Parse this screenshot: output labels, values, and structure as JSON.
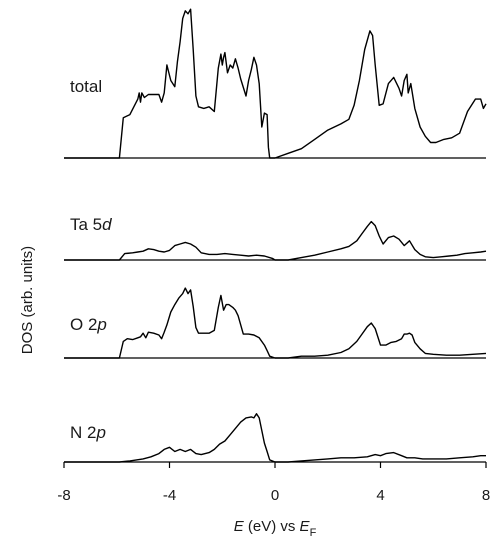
{
  "chart_data": {
    "type": "line",
    "ylabel": "DOS (arb. units)",
    "xlabel": {
      "italic_var": "E",
      "mid": " (eV) vs ",
      "italic_sub_base": "E",
      "sub": "F"
    },
    "xlim": [
      -8,
      8
    ],
    "xticks": [
      -8,
      -4,
      0,
      4,
      8
    ],
    "x_tick_labels": [
      "-8",
      "-4",
      "0",
      "4",
      "8"
    ],
    "grid": false,
    "panels": [
      {
        "label": "total",
        "label_main": "total",
        "label_sym": "",
        "ymax": 1.0,
        "x": [
          -8,
          -5.9,
          -5.75,
          -5.5,
          -5.2,
          -5.15,
          -5.1,
          -5.05,
          -4.95,
          -4.8,
          -4.6,
          -4.4,
          -4.3,
          -4.2,
          -4.1,
          -3.95,
          -3.8,
          -3.7,
          -3.6,
          -3.5,
          -3.4,
          -3.3,
          -3.2,
          -3.1,
          -3.0,
          -2.9,
          -2.7,
          -2.5,
          -2.3,
          -2.15,
          -2.05,
          -2.0,
          -1.95,
          -1.9,
          -1.8,
          -1.7,
          -1.6,
          -1.5,
          -1.4,
          -1.3,
          -1.1,
          -1.0,
          -0.9,
          -0.8,
          -0.7,
          -0.6,
          -0.5,
          -0.4,
          -0.3,
          -0.25,
          -0.2,
          0.0,
          0.5,
          1.0,
          1.5,
          2.0,
          2.5,
          2.8,
          3.0,
          3.2,
          3.4,
          3.6,
          3.7,
          3.8,
          3.95,
          4.1,
          4.3,
          4.5,
          4.7,
          4.8,
          4.9,
          5.0,
          5.05,
          5.15,
          5.3,
          5.5,
          5.7,
          5.9,
          6.1,
          6.4,
          6.7,
          7.0,
          7.3,
          7.6,
          7.8,
          7.9,
          8.0
        ],
        "y": [
          0,
          0,
          0.26,
          0.28,
          0.38,
          0.42,
          0.36,
          0.42,
          0.39,
          0.41,
          0.41,
          0.41,
          0.36,
          0.42,
          0.6,
          0.5,
          0.46,
          0.62,
          0.75,
          0.9,
          0.95,
          0.93,
          0.96,
          0.7,
          0.4,
          0.33,
          0.32,
          0.33,
          0.3,
          0.58,
          0.67,
          0.6,
          0.65,
          0.68,
          0.55,
          0.6,
          0.58,
          0.64,
          0.58,
          0.51,
          0.4,
          0.5,
          0.57,
          0.65,
          0.6,
          0.48,
          0.2,
          0.29,
          0.28,
          0.07,
          0.0,
          0.0,
          0.03,
          0.06,
          0.12,
          0.18,
          0.22,
          0.25,
          0.34,
          0.5,
          0.7,
          0.82,
          0.79,
          0.6,
          0.34,
          0.35,
          0.48,
          0.52,
          0.45,
          0.4,
          0.5,
          0.54,
          0.42,
          0.48,
          0.32,
          0.2,
          0.14,
          0.1,
          0.1,
          0.12,
          0.13,
          0.16,
          0.3,
          0.38,
          0.38,
          0.32,
          0.35
        ]
      },
      {
        "label": "Ta 5d",
        "label_main": "Ta 5",
        "label_sym": "d",
        "ymax": 1.0,
        "x": [
          -8,
          -5.9,
          -5.7,
          -5.4,
          -5.2,
          -5.0,
          -4.8,
          -4.6,
          -4.4,
          -4.2,
          -4.0,
          -3.8,
          -3.6,
          -3.4,
          -3.2,
          -3.0,
          -2.8,
          -2.5,
          -2.2,
          -1.9,
          -1.6,
          -1.3,
          -1.0,
          -0.7,
          -0.4,
          -0.1,
          0.0,
          0.5,
          1.0,
          1.5,
          2.0,
          2.5,
          2.8,
          3.1,
          3.3,
          3.5,
          3.65,
          3.8,
          3.95,
          4.1,
          4.3,
          4.5,
          4.7,
          4.9,
          5.1,
          5.3,
          5.5,
          5.7,
          6.0,
          6.3,
          6.6,
          6.9,
          7.2,
          7.5,
          7.8,
          8.0
        ],
        "y": [
          0,
          0,
          0.08,
          0.09,
          0.1,
          0.11,
          0.14,
          0.13,
          0.11,
          0.1,
          0.12,
          0.18,
          0.2,
          0.22,
          0.2,
          0.16,
          0.09,
          0.07,
          0.07,
          0.08,
          0.07,
          0.06,
          0.05,
          0.06,
          0.05,
          0.02,
          0.0,
          0.0,
          0.03,
          0.06,
          0.1,
          0.14,
          0.17,
          0.24,
          0.33,
          0.42,
          0.48,
          0.43,
          0.3,
          0.2,
          0.28,
          0.3,
          0.26,
          0.18,
          0.24,
          0.13,
          0.07,
          0.04,
          0.03,
          0.04,
          0.05,
          0.06,
          0.08,
          0.09,
          0.1,
          0.11
        ]
      },
      {
        "label": "O 2p",
        "label_main": "O 2",
        "label_sym": "p",
        "ymax": 1.0,
        "x": [
          -8,
          -5.9,
          -5.75,
          -5.6,
          -5.4,
          -5.2,
          -5.1,
          -5.0,
          -4.9,
          -4.8,
          -4.6,
          -4.4,
          -4.3,
          -4.2,
          -4.1,
          -3.95,
          -3.8,
          -3.65,
          -3.5,
          -3.4,
          -3.3,
          -3.2,
          -3.1,
          -3.0,
          -2.9,
          -2.7,
          -2.5,
          -2.3,
          -2.15,
          -2.05,
          -1.95,
          -1.85,
          -1.75,
          -1.6,
          -1.5,
          -1.4,
          -1.2,
          -1.0,
          -0.8,
          -0.6,
          -0.4,
          -0.3,
          -0.2,
          0.0,
          0.5,
          1.0,
          1.5,
          2.0,
          2.5,
          2.8,
          3.1,
          3.3,
          3.5,
          3.65,
          3.8,
          4.0,
          4.2,
          4.4,
          4.6,
          4.8,
          4.9,
          5.0,
          5.1,
          5.2,
          5.3,
          5.5,
          5.7,
          6.0,
          6.5,
          7.0,
          7.5,
          8.0
        ],
        "y": [
          0,
          0,
          0.18,
          0.21,
          0.2,
          0.22,
          0.23,
          0.27,
          0.22,
          0.28,
          0.27,
          0.25,
          0.21,
          0.28,
          0.36,
          0.5,
          0.58,
          0.65,
          0.7,
          0.76,
          0.7,
          0.74,
          0.56,
          0.33,
          0.27,
          0.27,
          0.27,
          0.3,
          0.55,
          0.68,
          0.52,
          0.58,
          0.58,
          0.55,
          0.52,
          0.46,
          0.26,
          0.26,
          0.25,
          0.22,
          0.14,
          0.08,
          0.02,
          0.0,
          0.0,
          0.02,
          0.02,
          0.03,
          0.06,
          0.1,
          0.18,
          0.26,
          0.34,
          0.38,
          0.32,
          0.14,
          0.14,
          0.17,
          0.18,
          0.21,
          0.26,
          0.26,
          0.27,
          0.25,
          0.17,
          0.1,
          0.05,
          0.04,
          0.03,
          0.03,
          0.04,
          0.05
        ]
      },
      {
        "label": "N 2p",
        "label_main": "N 2",
        "label_sym": "p",
        "ymax": 1.0,
        "x": [
          -8,
          -5.9,
          -5.5,
          -5.0,
          -4.7,
          -4.4,
          -4.2,
          -4.0,
          -3.8,
          -3.6,
          -3.4,
          -3.2,
          -3.0,
          -2.8,
          -2.5,
          -2.3,
          -2.1,
          -1.9,
          -1.7,
          -1.5,
          -1.3,
          -1.1,
          -0.9,
          -0.8,
          -0.7,
          -0.6,
          -0.5,
          -0.4,
          -0.3,
          -0.2,
          0.0,
          0.5,
          1.0,
          1.5,
          2.0,
          2.5,
          3.0,
          3.5,
          3.8,
          4.0,
          4.2,
          4.5,
          4.8,
          5.0,
          5.3,
          5.6,
          6.0,
          6.5,
          7.0,
          7.5,
          7.8,
          8.0
        ],
        "y": [
          0,
          0.0,
          0.01,
          0.03,
          0.05,
          0.08,
          0.12,
          0.14,
          0.1,
          0.12,
          0.1,
          0.12,
          0.08,
          0.07,
          0.09,
          0.12,
          0.17,
          0.2,
          0.26,
          0.32,
          0.38,
          0.42,
          0.43,
          0.42,
          0.46,
          0.42,
          0.3,
          0.18,
          0.1,
          0.02,
          0.0,
          0.0,
          0.01,
          0.02,
          0.03,
          0.04,
          0.04,
          0.05,
          0.07,
          0.06,
          0.08,
          0.09,
          0.06,
          0.04,
          0.04,
          0.03,
          0.03,
          0.03,
          0.04,
          0.05,
          0.06,
          0.06
        ]
      }
    ]
  }
}
